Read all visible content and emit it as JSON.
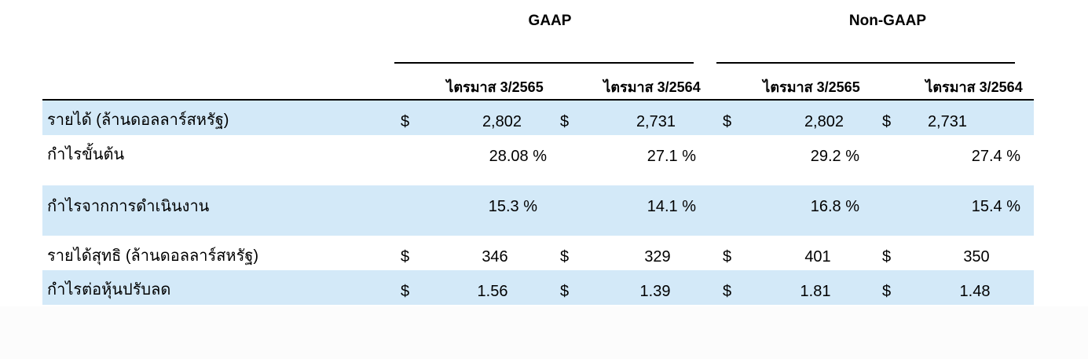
{
  "groups": [
    {
      "title": "GAAP"
    },
    {
      "title": "Non-GAAP"
    }
  ],
  "columns": [
    "ไตรมาส 3/2565",
    "ไตรมาส 3/2564",
    "ไตรมาส 3/2565",
    "ไตรมาส 3/2564"
  ],
  "currency_symbol": "$",
  "rows": [
    {
      "label": "รายได้ (ล้านดอลลาร์สหรัฐ)",
      "values": [
        "2,802",
        "2,731",
        "2,802",
        "2,731"
      ]
    },
    {
      "label": "กำไรขั้นต้น",
      "values": [
        "28.08 %",
        "27.1 %",
        "29.2 %",
        "27.4 %"
      ]
    },
    {
      "label": "กำไรจากการดำเนินงาน",
      "values": [
        "15.3 %",
        "14.1 %",
        "16.8 %",
        "15.4 %"
      ]
    },
    {
      "label": "รายได้สุทธิ (ล้านดอลลาร์สหรัฐ)",
      "values": [
        "346",
        "329",
        "401",
        "350"
      ]
    },
    {
      "label": "กำไรต่อหุ้นปรับลด",
      "values": [
        "1.56",
        "1.39",
        "1.81",
        "1.48"
      ]
    }
  ],
  "colors": {
    "row_shade": "#d3e9f8",
    "rule": "#000000",
    "text": "#000000"
  }
}
